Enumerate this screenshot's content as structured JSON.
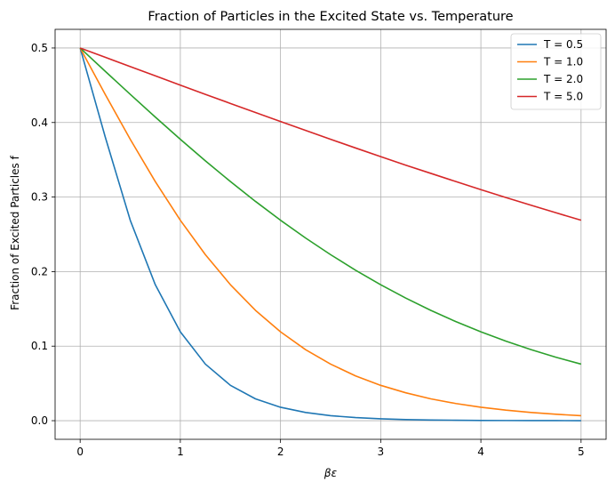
{
  "chart_data": {
    "type": "line",
    "title": "Fraction of Particles in the Excited State vs. Temperature",
    "xlabel": "βε",
    "ylabel": "Fraction of Excited Particles f",
    "xlim": [
      -0.25,
      5.25
    ],
    "ylim": [
      -0.025,
      0.525
    ],
    "grid": true,
    "legend_position": "top-right",
    "x_ticks": [
      0,
      1,
      2,
      3,
      4,
      5
    ],
    "x_tick_labels": [
      "0",
      "1",
      "2",
      "3",
      "4",
      "5"
    ],
    "y_ticks": [
      0.0,
      0.1,
      0.2,
      0.3,
      0.4,
      0.5
    ],
    "y_tick_labels": [
      "0.0",
      "0.1",
      "0.2",
      "0.3",
      "0.4",
      "0.5"
    ],
    "x": [
      0,
      0.25,
      0.5,
      0.75,
      1,
      1.25,
      1.5,
      1.75,
      2,
      2.25,
      2.5,
      2.75,
      3,
      3.25,
      3.5,
      3.75,
      4,
      4.25,
      4.5,
      4.75,
      5
    ],
    "series": [
      {
        "name": "T = 0.5",
        "color": "#1f77b4",
        "values": [
          0.5,
          0.3808,
          0.2689,
          0.1824,
          0.1192,
          0.0759,
          0.0474,
          0.0293,
          0.018,
          0.011,
          0.0067,
          0.0041,
          0.0025,
          0.0015,
          0.0009,
          0.0006,
          0.0003,
          0.0002,
          0.0001,
          0.0001,
          0.0
        ]
      },
      {
        "name": "T = 1.0",
        "color": "#ff7f0e",
        "values": [
          0.5,
          0.4378,
          0.3775,
          0.3208,
          0.2689,
          0.2227,
          0.1824,
          0.148,
          0.1192,
          0.0953,
          0.0759,
          0.06,
          0.0474,
          0.0374,
          0.0293,
          0.023,
          0.018,
          0.0141,
          0.011,
          0.0086,
          0.0067
        ]
      },
      {
        "name": "T = 2.0",
        "color": "#2ca02c",
        "values": [
          0.5,
          0.4688,
          0.4378,
          0.4073,
          0.3775,
          0.3486,
          0.3208,
          0.2942,
          0.2689,
          0.2451,
          0.2227,
          0.2018,
          0.1824,
          0.1645,
          0.148,
          0.1329,
          0.1192,
          0.1067,
          0.0953,
          0.0851,
          0.0759
        ]
      },
      {
        "name": "T = 5.0",
        "color": "#d62728",
        "values": [
          0.5,
          0.4875,
          0.475,
          0.4626,
          0.4502,
          0.4378,
          0.4256,
          0.4134,
          0.4013,
          0.3894,
          0.3775,
          0.3658,
          0.3543,
          0.3428,
          0.3318,
          0.3208,
          0.31,
          0.2994,
          0.2891,
          0.2789,
          0.2689
        ]
      }
    ]
  }
}
